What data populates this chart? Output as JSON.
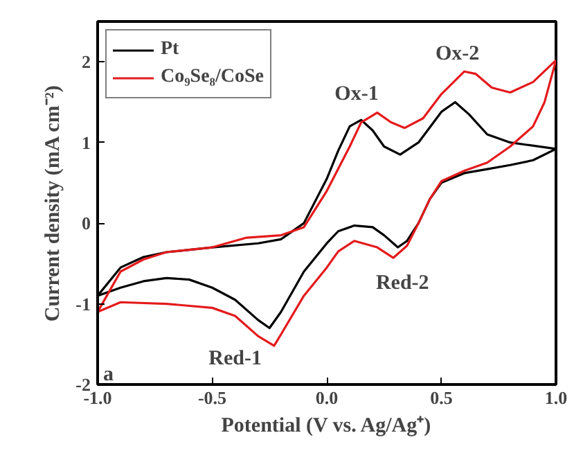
{
  "chart_data": {
    "type": "line",
    "xlabel": "Potential (V vs. Ag/Ag⁺)",
    "ylabel": "Current density (mA cm⁻²)",
    "xlim": [
      -1.0,
      1.0
    ],
    "ylim": [
      -2,
      2.5
    ],
    "xticks": [
      {
        "value": -1.0,
        "label": "-1.0"
      },
      {
        "value": -0.5,
        "label": "-0.5"
      },
      {
        "value": 0.0,
        "label": "0.0"
      },
      {
        "value": 0.5,
        "label": "0.5"
      },
      {
        "value": 1.0,
        "label": "1.0"
      }
    ],
    "yticks": [
      -2,
      -1,
      0,
      1,
      2
    ],
    "grid": false,
    "legend": "top left",
    "line_style": "solid",
    "marker": "none",
    "annotations": [
      "a",
      "Ox-1",
      "Ox-2",
      "Red-1",
      "Red-2"
    ],
    "series": [
      {
        "name": "Pt",
        "color": "#000000",
        "x": [
          -1.0,
          -0.9,
          -0.8,
          -0.7,
          -0.5,
          -0.3,
          -0.2,
          -0.1,
          0.0,
          0.05,
          0.1,
          0.15,
          0.2,
          0.25,
          0.32,
          0.4,
          0.5,
          0.56,
          0.62,
          0.7,
          0.8,
          1.0
        ],
        "values": [
          -0.9,
          -0.55,
          -0.42,
          -0.36,
          -0.3,
          -0.25,
          -0.2,
          0.0,
          0.55,
          0.9,
          1.2,
          1.28,
          1.15,
          0.95,
          0.85,
          1.0,
          1.38,
          1.5,
          1.35,
          1.1,
          1.0,
          0.92
        ]
      },
      {
        "color": "#000000",
        "x": [
          1.0,
          0.9,
          0.8,
          0.7,
          0.6,
          0.5,
          0.45,
          0.4,
          0.35,
          0.31,
          0.25,
          0.2,
          0.12,
          0.05,
          0.0,
          -0.1,
          -0.2,
          -0.25,
          -0.3,
          -0.4,
          -0.5,
          -0.6,
          -0.7,
          -0.8,
          -0.9,
          -1.0
        ],
        "values": [
          0.92,
          0.78,
          0.72,
          0.67,
          0.62,
          0.5,
          0.3,
          0.0,
          -0.22,
          -0.3,
          -0.15,
          -0.05,
          -0.03,
          -0.1,
          -0.25,
          -0.6,
          -1.1,
          -1.3,
          -1.2,
          -0.95,
          -0.8,
          -0.7,
          -0.68,
          -0.72,
          -0.8,
          -0.9
        ]
      },
      {
        "name": "Co₉Se₈/CoSe",
        "color": "#e41a1c",
        "x": [
          -1.0,
          -0.95,
          -0.9,
          -0.8,
          -0.7,
          -0.5,
          -0.35,
          -0.2,
          -0.1,
          0.0,
          0.1,
          0.15,
          0.22,
          0.28,
          0.34,
          0.42,
          0.5,
          0.6,
          0.65,
          0.72,
          0.8,
          0.9,
          1.0
        ],
        "values": [
          -1.1,
          -0.85,
          -0.6,
          -0.45,
          -0.36,
          -0.3,
          -0.18,
          -0.15,
          -0.05,
          0.4,
          0.95,
          1.25,
          1.37,
          1.25,
          1.18,
          1.3,
          1.6,
          1.88,
          1.85,
          1.68,
          1.62,
          1.75,
          2.02
        ]
      },
      {
        "color": "#e41a1c",
        "x": [
          1.0,
          0.95,
          0.9,
          0.8,
          0.7,
          0.6,
          0.5,
          0.45,
          0.4,
          0.35,
          0.29,
          0.22,
          0.12,
          0.05,
          0.0,
          -0.1,
          -0.2,
          -0.23,
          -0.3,
          -0.4,
          -0.5,
          -0.7,
          -0.9,
          -1.0
        ],
        "values": [
          2.02,
          1.5,
          1.2,
          0.95,
          0.75,
          0.65,
          0.52,
          0.3,
          0.0,
          -0.28,
          -0.43,
          -0.3,
          -0.22,
          -0.35,
          -0.55,
          -0.9,
          -1.38,
          -1.52,
          -1.4,
          -1.15,
          -1.05,
          -1.0,
          -0.98,
          -1.1
        ]
      }
    ]
  }
}
